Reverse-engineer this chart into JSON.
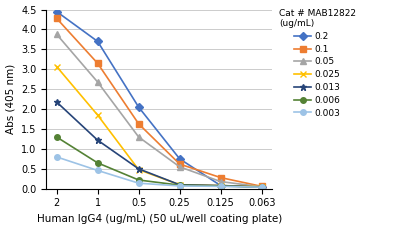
{
  "x": [
    2,
    1,
    0.5,
    0.25,
    0.125,
    0.063
  ],
  "series": [
    {
      "label": "0.2",
      "color": "#4472C4",
      "marker": "D",
      "markersize": 4,
      "values": [
        4.45,
        3.7,
        2.05,
        0.75,
        0.08,
        0.05
      ]
    },
    {
      "label": "0.1",
      "color": "#ED7D31",
      "marker": "s",
      "markersize": 4,
      "values": [
        4.28,
        3.15,
        1.63,
        0.62,
        0.28,
        0.06
      ]
    },
    {
      "label": "0.05",
      "color": "#A5A5A5",
      "marker": "^",
      "markersize": 4,
      "values": [
        3.88,
        2.68,
        1.3,
        0.55,
        0.18,
        0.05
      ]
    },
    {
      "label": "0.025",
      "color": "#FFC000",
      "marker": "x",
      "markersize": 4,
      "values": [
        3.07,
        1.85,
        0.48,
        0.1,
        0.08,
        0.05
      ]
    },
    {
      "label": "0.013",
      "color": "#264478",
      "marker": "*",
      "markersize": 5,
      "values": [
        2.18,
        1.22,
        0.5,
        0.1,
        0.08,
        0.04
      ]
    },
    {
      "label": "0.006",
      "color": "#548235",
      "marker": "o",
      "markersize": 4,
      "values": [
        1.3,
        0.65,
        0.22,
        0.09,
        0.07,
        0.04
      ]
    },
    {
      "label": "0.003",
      "color": "#9DC3E6",
      "marker": "o",
      "markersize": 4,
      "values": [
        0.8,
        0.46,
        0.14,
        0.07,
        0.06,
        0.04
      ]
    }
  ],
  "xlabel": "Human IgG4 (ug/mL) (50 uL/well coating plate)",
  "ylabel": "Abs (405 nm)",
  "legend_title": "Cat # MAB12822\n(ug/mL)",
  "ylim": [
    0,
    4.5
  ],
  "yticks": [
    0,
    0.5,
    1.0,
    1.5,
    2.0,
    2.5,
    3.0,
    3.5,
    4.0,
    4.5
  ],
  "xtick_labels": [
    "2",
    "1",
    "0.5",
    "0.25",
    "0.125",
    "0.063"
  ],
  "background_color": "#ffffff",
  "grid_color": "#cccccc"
}
